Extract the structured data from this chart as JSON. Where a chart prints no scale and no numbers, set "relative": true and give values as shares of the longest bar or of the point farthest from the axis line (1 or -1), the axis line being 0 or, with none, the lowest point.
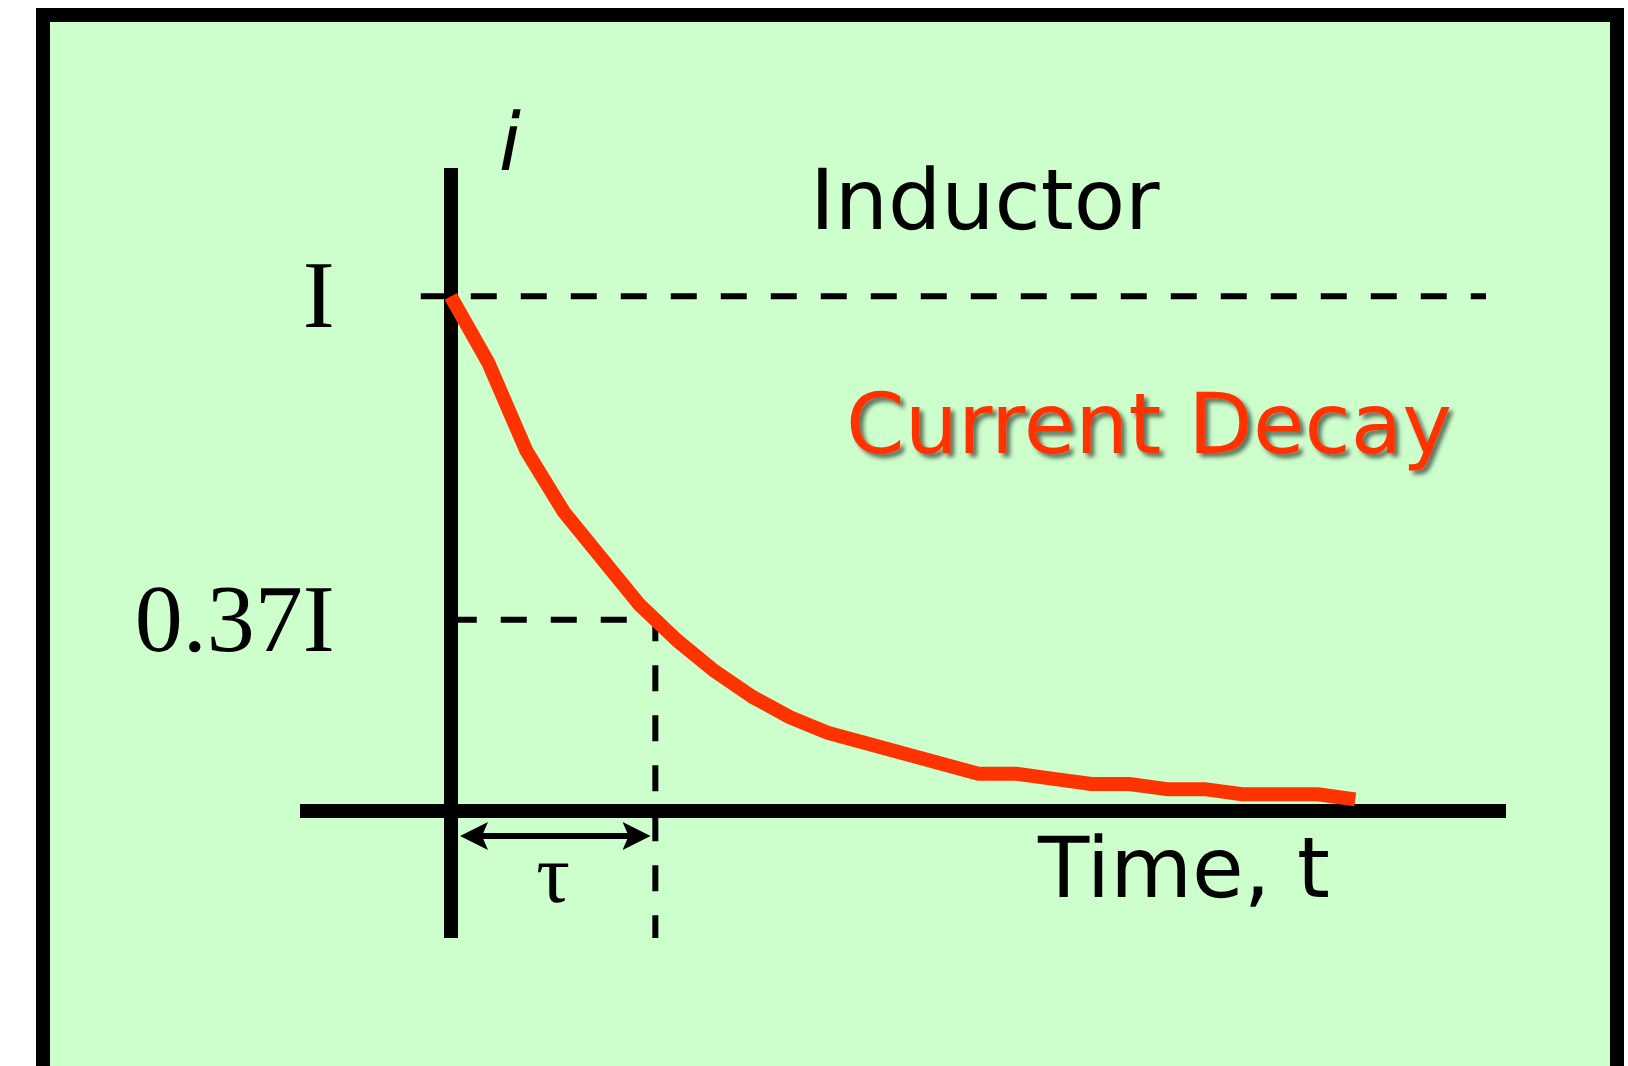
{
  "chart_data": {
    "type": "line",
    "title": "Inductor",
    "xlabel": "Time, t",
    "ylabel": "i",
    "relative": true,
    "categories": [
      null,
      null,
      null,
      null,
      null,
      null,
      null,
      null,
      null,
      null,
      null,
      null,
      null,
      null,
      null,
      null,
      null,
      null,
      null,
      null,
      null,
      null,
      null,
      null,
      null,
      null,
      null,
      null,
      null,
      null,
      null,
      null,
      null
    ],
    "series": [
      {
        "name": "Current Decay",
        "color": "#ff3300",
        "values": [
          null,
          null,
          null,
          null,
          1.0,
          0.87,
          0.7,
          0.58,
          0.49,
          0.4,
          0.33,
          0.27,
          0.22,
          0.18,
          0.15,
          0.13,
          0.11,
          0.09,
          0.07,
          0.07,
          0.06,
          0.05,
          0.05,
          0.04,
          0.04,
          0.03,
          0.03,
          0.03,
          0.02,
          null,
          null,
          null,
          null
        ]
      }
    ],
    "ref_lines": [
      {
        "axis": "y",
        "value": 1,
        "label": "I",
        "color": "#000000",
        "line_style": "dashed"
      },
      {
        "axis": "y",
        "value": 0.37,
        "label": "0.37I",
        "color": "#000000",
        "line_style": "dashed"
      }
    ],
    "annotations": [
      "τ"
    ],
    "grid": false,
    "legend": false,
    "marker": "none"
  }
}
